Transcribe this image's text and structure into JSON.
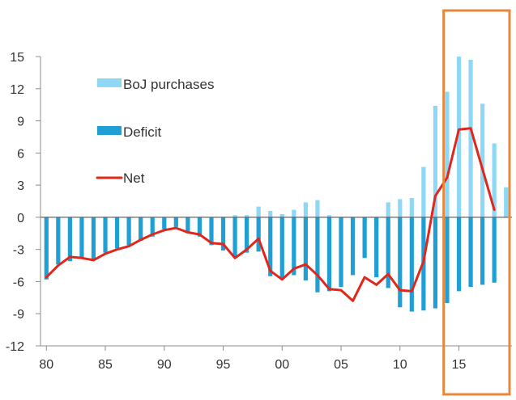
{
  "chart_data": {
    "type": "bar",
    "xlabel": "",
    "ylabel": "",
    "title": "",
    "x": [
      1980,
      1981,
      1982,
      1983,
      1984,
      1985,
      1986,
      1987,
      1988,
      1989,
      1990,
      1991,
      1992,
      1993,
      1994,
      1995,
      1996,
      1997,
      1998,
      1999,
      2000,
      2001,
      2002,
      2003,
      2004,
      2005,
      2006,
      2007,
      2008,
      2009,
      2010,
      2011,
      2012,
      2013,
      2014,
      2015,
      2016,
      2017,
      2018,
      2019
    ],
    "xticks": [
      {
        "value": 1980,
        "label": "80"
      },
      {
        "value": 1985,
        "label": "85"
      },
      {
        "value": 1990,
        "label": "90"
      },
      {
        "value": 1995,
        "label": "95"
      },
      {
        "value": 2000,
        "label": "00"
      },
      {
        "value": 2005,
        "label": "05"
      },
      {
        "value": 2010,
        "label": "10"
      },
      {
        "value": 2015,
        "label": "15"
      }
    ],
    "yticks": [
      15,
      12,
      9,
      6,
      3,
      0,
      -3,
      -6,
      -9,
      -12
    ],
    "ylim": [
      -12,
      15
    ],
    "xlim": [
      1979.5,
      2019.5
    ],
    "series": [
      {
        "name": "BoJ purchases",
        "kind": "bar",
        "color": "#8fd8f5",
        "values": [
          0,
          0,
          0,
          0,
          0,
          0,
          0,
          0,
          0,
          0,
          0,
          0,
          0,
          0,
          0,
          0,
          0.2,
          0.2,
          1.0,
          0.6,
          0.3,
          0.7,
          1.4,
          1.6,
          0.2,
          -0.3,
          -2.2,
          -0.5,
          -1.2,
          1.4,
          1.7,
          1.8,
          4.7,
          10.4,
          11.7,
          15.0,
          14.7,
          10.6,
          6.9,
          2.8
        ]
      },
      {
        "name": "Deficit",
        "kind": "bar",
        "color": "#1f9fd4",
        "values": [
          -5.8,
          -4.4,
          -4.1,
          -3.8,
          -4.0,
          -3.3,
          -2.9,
          -2.6,
          -2.2,
          -1.8,
          -1.1,
          -0.9,
          -1.5,
          -1.8,
          -2.6,
          -3.1,
          -3.7,
          -3.3,
          -3.2,
          -5.5,
          -5.7,
          -5.4,
          -5.9,
          -7.0,
          -6.9,
          -6.5,
          -5.4,
          -3.8,
          -5.6,
          -6.6,
          -8.4,
          -8.8,
          -8.7,
          -8.5,
          -8.0,
          -6.9,
          -6.5,
          -6.3,
          -6.1,
          null
        ]
      },
      {
        "name": "Net",
        "kind": "line",
        "color": "#e1261c",
        "values": [
          -5.6,
          -4.5,
          -3.7,
          -3.8,
          -4.0,
          -3.4,
          -3.0,
          -2.7,
          -2.1,
          -1.6,
          -1.2,
          -1.0,
          -1.4,
          -1.6,
          -2.4,
          -2.5,
          -3.8,
          -3.0,
          -2.0,
          -5.0,
          -5.8,
          -4.8,
          -4.4,
          -5.4,
          -6.7,
          -6.8,
          -7.8,
          -5.6,
          -6.3,
          -5.3,
          -6.8,
          -6.9,
          -4.1,
          2.0,
          3.7,
          8.2,
          8.3,
          4.5,
          0.7,
          null
        ]
      }
    ],
    "legend_position": "top-left",
    "grid": false
  },
  "annotation": {
    "highlight_box_color": "#e8863a",
    "highlight_from": 2013.5,
    "highlight_to": 2019.5
  }
}
